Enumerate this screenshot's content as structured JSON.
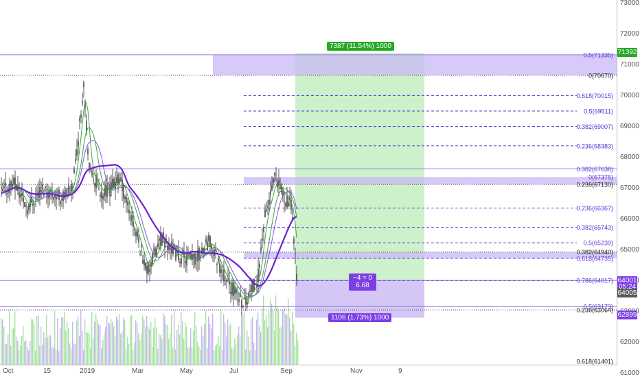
{
  "colors": {
    "grid_line": "#d1d4dc",
    "price_line": "#6a5acd",
    "fib_purple": "#5b2fd6",
    "fib_zone": "#c9b8f5",
    "green_zone": "#c8f0c5",
    "green_tag": "#26a826",
    "purple_tag": "#7b3fe4",
    "candle": "#2b2b2b",
    "ma_fast": "#3aa43a",
    "ma_slow": "#6a1fd1",
    "volume_green": "#a6e3a1",
    "volume_purple": "#c7b6f0"
  },
  "price_axis": {
    "labels": [
      "73000",
      "72000",
      "71000",
      "70000",
      "69000",
      "68000",
      "67000",
      "66000",
      "65000",
      "64000",
      "63000",
      "62000",
      "61000"
    ],
    "range": [
      61000,
      73200
    ],
    "badges": [
      {
        "text": "71392",
        "price": 71392,
        "color": "#26a826"
      },
      {
        "text": "64001",
        "price": 64001,
        "color": "#7b3fe4"
      },
      {
        "text": "05:24",
        "price": 63800,
        "color": "#7b3fe4"
      },
      {
        "text": "64005",
        "price": 63605,
        "color": "#5a5a5a"
      },
      {
        "text": "62899",
        "price": 62899,
        "color": "#7b3fe4"
      }
    ]
  },
  "time_axis": {
    "labels": [
      "Oct",
      "15",
      "2019",
      "Mar",
      "May",
      "Jul",
      "Sep",
      "Nov",
      "9"
    ]
  },
  "fib_upper": [
    {
      "label": "0.5(71335)",
      "price": 71335
    },
    {
      "label": "0(70670)",
      "price": 70670
    },
    {
      "label": "0.618(70015)",
      "price": 70015
    },
    {
      "label": "0.5(69511)",
      "price": 69511
    },
    {
      "label": "0.382(69007)",
      "price": 69007
    },
    {
      "label": "0.236(68383)",
      "price": 68383
    },
    {
      "label": "0.382(67638)",
      "price": 67638
    },
    {
      "label": "0(67375)",
      "price": 67375
    },
    {
      "label": "0.236(67130)",
      "price": 67130
    },
    {
      "label": "0.236(66367)",
      "price": 66367
    },
    {
      "label": "0.382(65743)",
      "price": 65743
    },
    {
      "label": "0.5(65239)",
      "price": 65239
    },
    {
      "label": "0.382(64940)",
      "price": 64940
    },
    {
      "label": "0.618(64735)",
      "price": 64735
    },
    {
      "label": "0.786(64017)",
      "price": 64017
    },
    {
      "label": "0.5(63173)",
      "price": 63173
    },
    {
      "label": "0.236(63064)",
      "price": 63064
    },
    {
      "label": "0.618(61401)",
      "price": 61401
    }
  ],
  "position": {
    "profit_label": "7387 (11.54%) 1000",
    "loss_label": "1106 (1.73%) 1000",
    "center_line1": "−4 ≈ 0",
    "center_line2": "6.68"
  }
}
